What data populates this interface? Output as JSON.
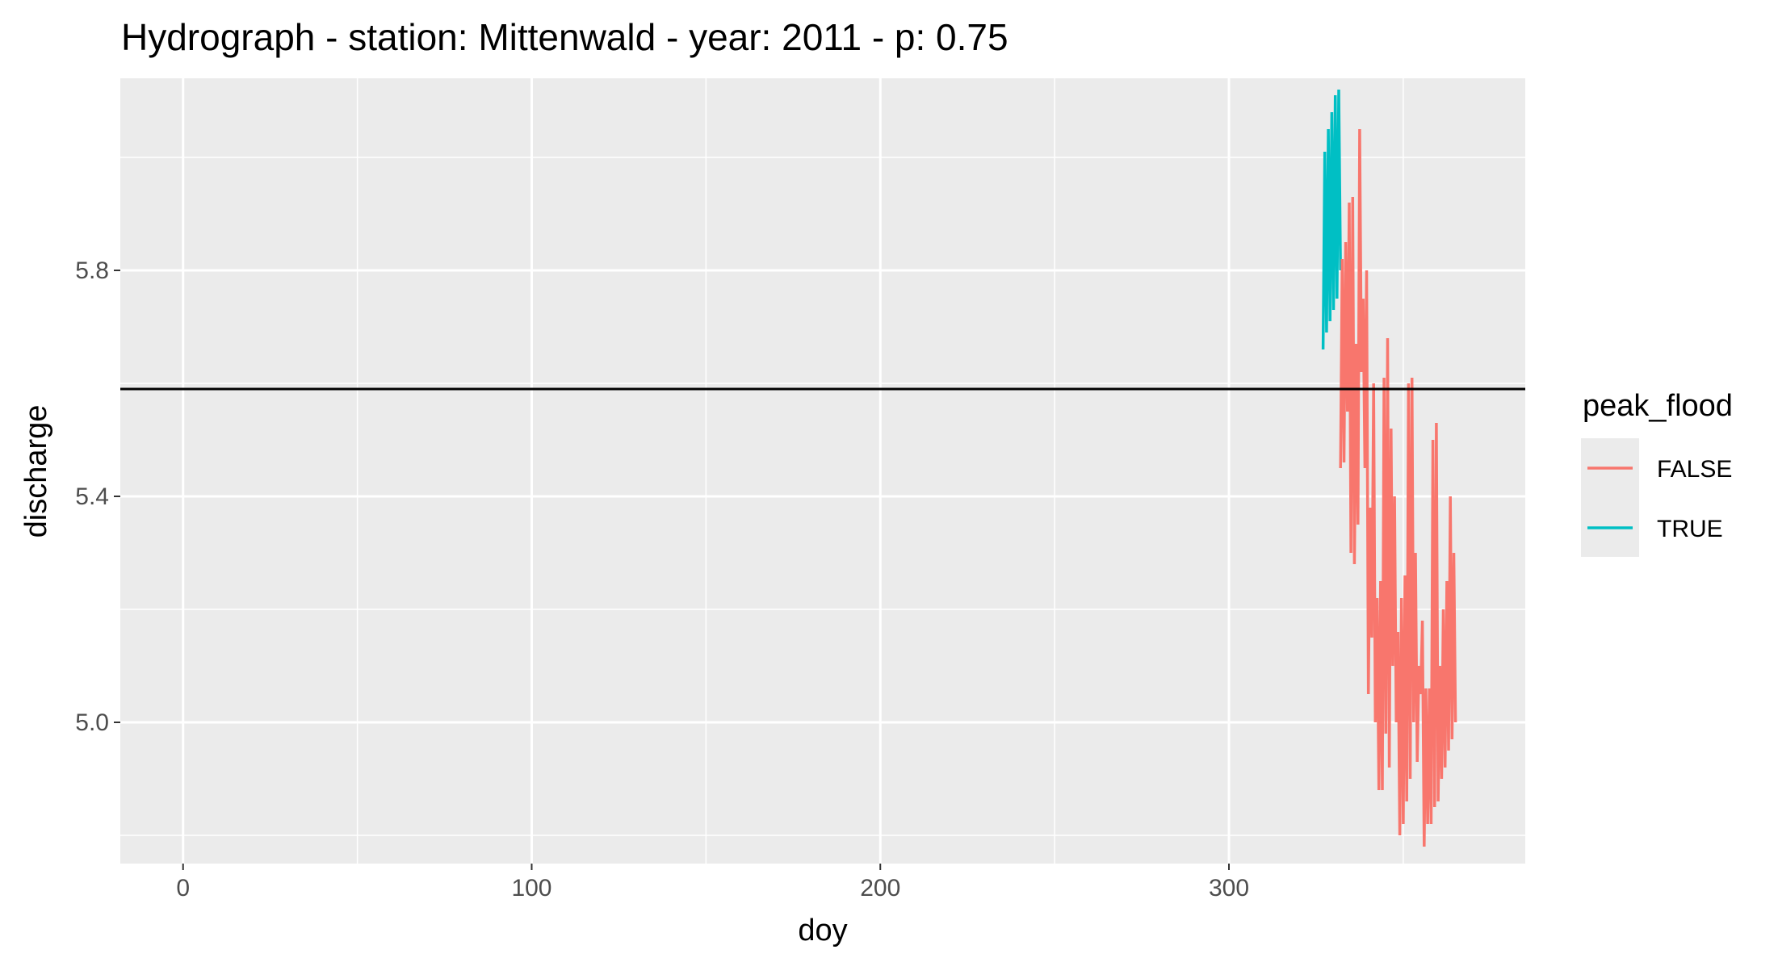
{
  "chart_data": {
    "type": "line",
    "title": "Hydrograph - station: Mittenwald - year: 2011 - p: 0.75",
    "xlabel": "doy",
    "ylabel": "discharge",
    "xlim": [
      -18,
      385
    ],
    "ylim": [
      4.75,
      6.14
    ],
    "x_ticks": [
      0,
      100,
      200,
      300
    ],
    "x_minor": [
      50,
      150,
      250,
      350
    ],
    "y_ticks": [
      5.0,
      5.4,
      5.8
    ],
    "y_minor": [
      4.8,
      5.2,
      5.6,
      6.0
    ],
    "x_tick_labels": [
      "0",
      "100",
      "200",
      "300"
    ],
    "y_tick_labels": [
      "5.0",
      "5.4",
      "5.8"
    ],
    "threshold": 5.59,
    "grid": true,
    "panel_background": "#ebebeb",
    "grid_color": "#ffffff",
    "legend": {
      "title": "peak_flood",
      "position": "right",
      "entries": [
        {
          "label": "FALSE",
          "color": "#F8766D"
        },
        {
          "label": "TRUE",
          "color": "#00BFC4"
        }
      ]
    },
    "series": [
      {
        "name": "TRUE",
        "color": "#00BFC4",
        "x": [
          327,
          327.5,
          328,
          328.5,
          329,
          329.5,
          330,
          330.5,
          331,
          331.5,
          332
        ],
        "y": [
          5.66,
          6.01,
          5.69,
          6.05,
          5.71,
          6.08,
          5.73,
          6.11,
          5.75,
          6.12,
          5.8
        ]
      },
      {
        "name": "FALSE",
        "color": "#F8766D",
        "x": [
          332,
          332.5,
          333,
          333.5,
          334,
          334.5,
          335,
          335.5,
          336,
          336.5,
          337,
          337.5,
          338,
          338.5,
          339,
          339.5,
          340,
          340.5,
          341,
          341.5,
          342,
          342.5,
          343,
          343.5,
          344,
          344.5,
          345,
          345.5,
          346,
          346.5,
          347,
          347.5,
          348,
          348.5,
          349,
          349.5,
          350,
          350.5,
          351,
          351.5,
          352,
          352.5,
          353,
          353.5,
          354,
          354.5,
          355,
          355.5,
          356,
          356.5,
          357,
          357.5,
          358,
          358.5,
          359,
          359.5,
          360,
          360.5,
          361,
          361.5,
          362,
          362.5,
          363,
          363.5,
          364,
          364.5,
          365
        ],
        "y": [
          5.45,
          5.82,
          5.46,
          5.85,
          5.55,
          5.92,
          5.3,
          5.93,
          5.28,
          5.67,
          5.35,
          6.05,
          5.62,
          5.75,
          5.45,
          5.8,
          5.05,
          5.38,
          5.15,
          5.6,
          5.0,
          5.22,
          4.88,
          5.25,
          4.88,
          5.61,
          4.98,
          5.68,
          4.92,
          5.52,
          5.1,
          5.4,
          5.0,
          5.16,
          4.8,
          5.22,
          4.82,
          5.26,
          4.86,
          5.6,
          4.9,
          5.61,
          5.0,
          5.3,
          4.93,
          5.1,
          5.05,
          5.18,
          4.78,
          5.06,
          4.82,
          5.06,
          4.82,
          5.5,
          4.85,
          5.53,
          4.86,
          5.1,
          4.9,
          5.2,
          4.92,
          5.25,
          4.95,
          5.4,
          4.97,
          5.3,
          5.0
        ]
      }
    ]
  }
}
